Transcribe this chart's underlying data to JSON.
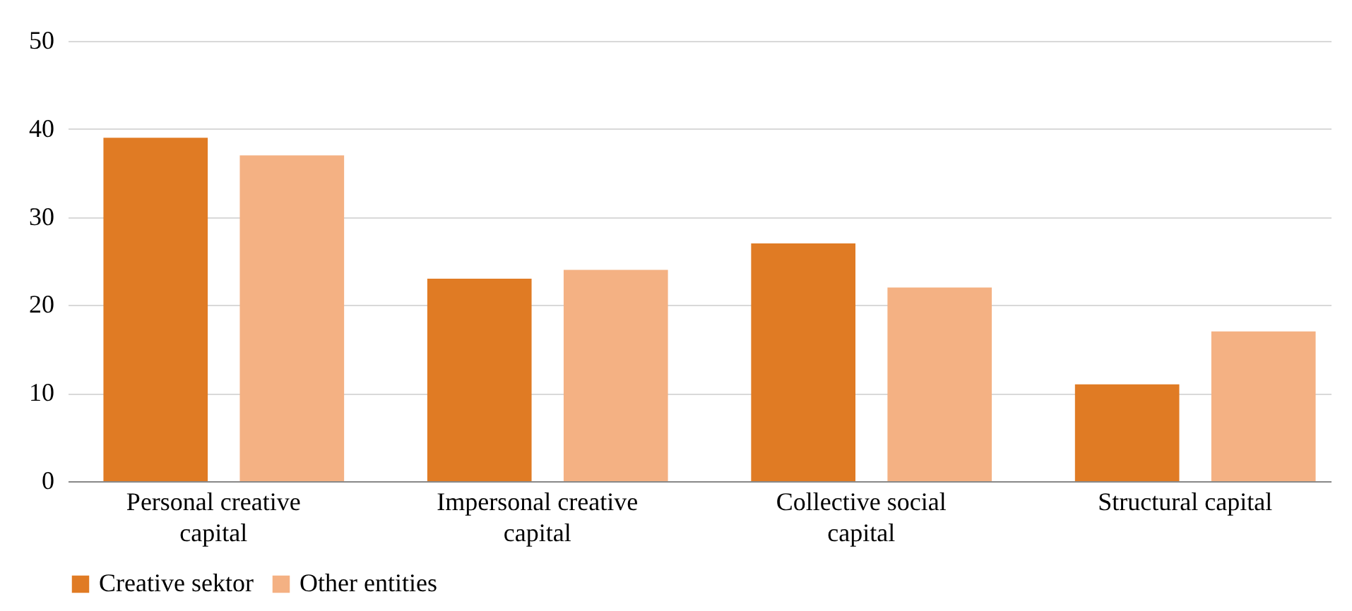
{
  "chart_data": {
    "type": "bar",
    "categories": [
      "Personal creative capital",
      "Impersonal creative capital",
      "Collective social capital",
      "Structural capital"
    ],
    "series": [
      {
        "name": "Creative sektor",
        "color": "#e07b24",
        "values": [
          39,
          23,
          27,
          11
        ]
      },
      {
        "name": "Other entities",
        "color": "#f4b183",
        "values": [
          37,
          24,
          22,
          17
        ]
      }
    ],
    "ylim": [
      0,
      50
    ],
    "yticks": [
      0,
      10,
      20,
      30,
      40,
      50
    ],
    "grid": "y",
    "legend": "bottom"
  }
}
